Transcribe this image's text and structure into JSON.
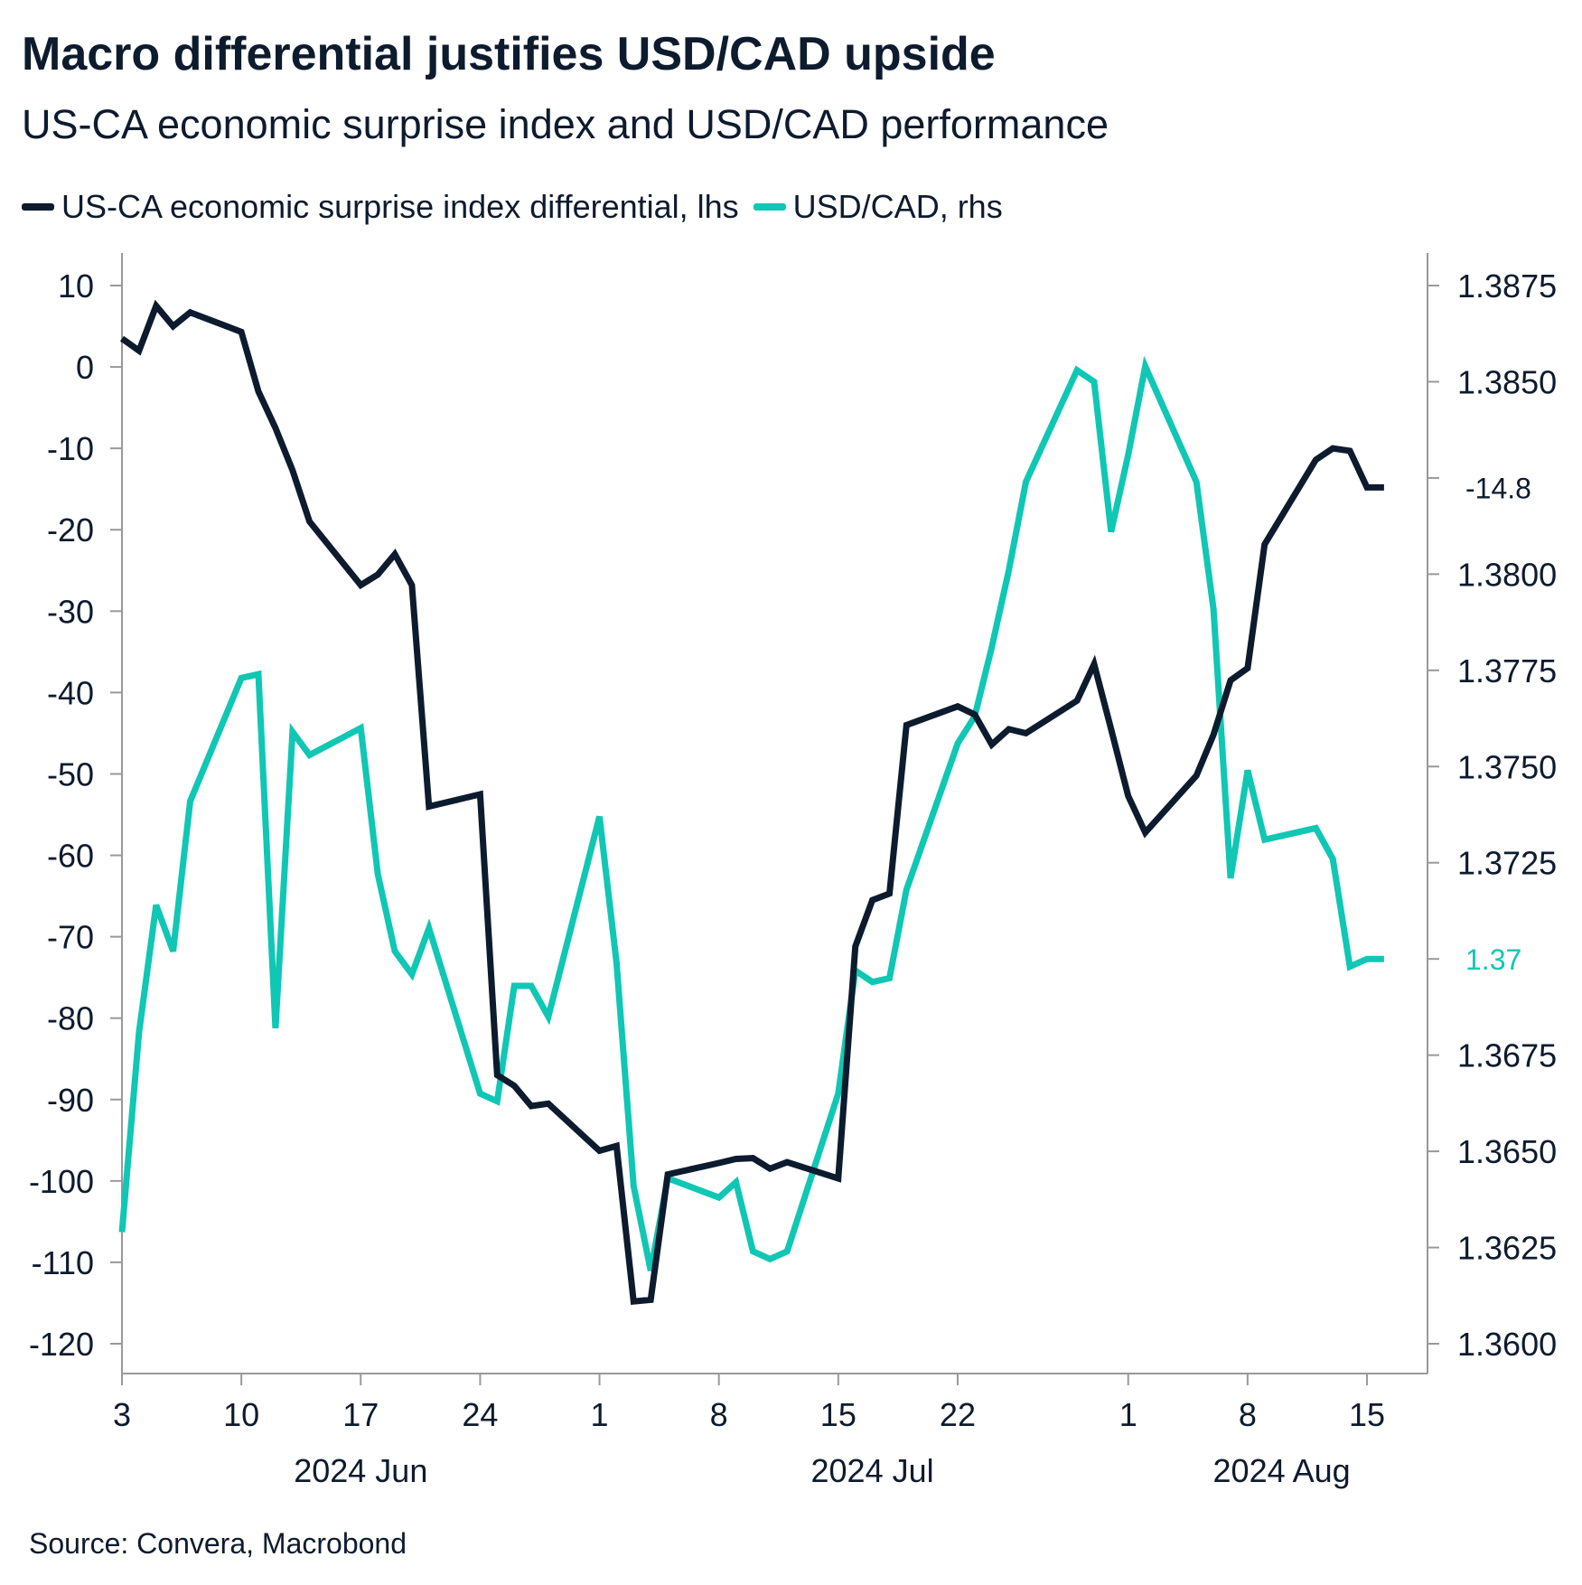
{
  "title": "Macro differential justifies USD/CAD upside",
  "subtitle": "US-CA economic surprise index and USD/CAD performance",
  "source": "Source: Convera, Macrobond",
  "colors": {
    "lhs": "#0d1b2e",
    "rhs": "#0fc7b4",
    "axis": "#999999"
  },
  "chart_data": {
    "type": "line",
    "x_axis": {
      "tick_labels": [
        "3",
        "10",
        "17",
        "24",
        "1",
        "8",
        "15",
        "22",
        "1",
        "8",
        "15"
      ],
      "tick_dates": [
        "2024-06-03",
        "2024-06-10",
        "2024-06-17",
        "2024-06-24",
        "2024-07-01",
        "2024-07-08",
        "2024-07-15",
        "2024-07-22",
        "2024-08-01",
        "2024-08-08",
        "2024-08-15"
      ],
      "month_labels": [
        {
          "label": "2024 Jun",
          "date": "2024-06-17"
        },
        {
          "label": "2024 Jul",
          "date": "2024-07-17"
        },
        {
          "label": "2024 Aug",
          "date": "2024-08-10"
        }
      ],
      "range": [
        "2024-06-03",
        "2024-08-19"
      ]
    },
    "y_left": {
      "range": [
        -120,
        10
      ],
      "ticks": [
        10,
        0,
        -10,
        -20,
        -30,
        -40,
        -50,
        -60,
        -70,
        -80,
        -90,
        -100,
        -110,
        -120
      ],
      "tick_labels": [
        "10",
        "0",
        "-10",
        "-20",
        "-30",
        "-40",
        "-50",
        "-60",
        "-70",
        "-80",
        "-90",
        "-100",
        "-110",
        "-120"
      ]
    },
    "y_right": {
      "range": [
        1.36,
        1.3875
      ],
      "ticks": [
        1.3875,
        1.385,
        1.3825,
        1.38,
        1.3775,
        1.375,
        1.3725,
        1.37,
        1.3675,
        1.365,
        1.3625,
        1.36
      ],
      "tick_labels": [
        "1.3875",
        "1.3850",
        "",
        "1.3800",
        "1.3775",
        "1.3750",
        "1.3725",
        "",
        "1.3675",
        "1.3650",
        "1.3625",
        "1.3600"
      ]
    },
    "end_labels": [
      {
        "text": "-14.8",
        "series": 0,
        "value": -14.8
      },
      {
        "text": "1.37",
        "series": 1,
        "value": 1.37
      }
    ],
    "series": [
      {
        "name": "US-CA economic surprise index differential, lhs",
        "axis": "left",
        "x": [
          "2024-06-03",
          "2024-06-04",
          "2024-06-05",
          "2024-06-06",
          "2024-06-07",
          "2024-06-10",
          "2024-06-11",
          "2024-06-12",
          "2024-06-13",
          "2024-06-14",
          "2024-06-17",
          "2024-06-18",
          "2024-06-19",
          "2024-06-20",
          "2024-06-21",
          "2024-06-24",
          "2024-06-25",
          "2024-06-26",
          "2024-06-27",
          "2024-06-28",
          "2024-07-01",
          "2024-07-02",
          "2024-07-03",
          "2024-07-04",
          "2024-07-05",
          "2024-07-08",
          "2024-07-09",
          "2024-07-10",
          "2024-07-11",
          "2024-07-12",
          "2024-07-15",
          "2024-07-16",
          "2024-07-17",
          "2024-07-18",
          "2024-07-19",
          "2024-07-22",
          "2024-07-23",
          "2024-07-24",
          "2024-07-25",
          "2024-07-26",
          "2024-07-29",
          "2024-07-30",
          "2024-07-31",
          "2024-08-01",
          "2024-08-02",
          "2024-08-05",
          "2024-08-06",
          "2024-08-07",
          "2024-08-08",
          "2024-08-09",
          "2024-08-12",
          "2024-08-13",
          "2024-08-14",
          "2024-08-15",
          "2024-08-16"
        ],
        "values": [
          3.5,
          2,
          7.5,
          5,
          6.7,
          4.3,
          -3,
          -7.5,
          -12.7,
          -19,
          -26.8,
          -25.5,
          -23,
          -26.8,
          -54,
          -52.5,
          -87,
          -88.3,
          -90.8,
          -90.5,
          -96.3,
          -95.7,
          -114.8,
          -114.6,
          -99.2,
          -97.8,
          -97.3,
          -97.2,
          -98.5,
          -97.7,
          -99.7,
          -71.2,
          -65.5,
          -64.7,
          -44,
          -41.7,
          -42.7,
          -46.4,
          -44.5,
          -45,
          -41,
          -36.5,
          -44.5,
          -52.7,
          -57.2,
          -50.2,
          -45.2,
          -38.5,
          -37,
          -21.8,
          -11.4,
          -10,
          -10.3,
          -14.8,
          -14.8
        ]
      },
      {
        "name": "USD/CAD, rhs",
        "axis": "right",
        "x": [
          "2024-06-03",
          "2024-06-04",
          "2024-06-05",
          "2024-06-06",
          "2024-06-07",
          "2024-06-10",
          "2024-06-11",
          "2024-06-12",
          "2024-06-13",
          "2024-06-14",
          "2024-06-17",
          "2024-06-18",
          "2024-06-19",
          "2024-06-20",
          "2024-06-21",
          "2024-06-24",
          "2024-06-25",
          "2024-06-26",
          "2024-06-27",
          "2024-06-28",
          "2024-07-01",
          "2024-07-02",
          "2024-07-03",
          "2024-07-04",
          "2024-07-05",
          "2024-07-08",
          "2024-07-09",
          "2024-07-10",
          "2024-07-11",
          "2024-07-12",
          "2024-07-15",
          "2024-07-16",
          "2024-07-17",
          "2024-07-18",
          "2024-07-19",
          "2024-07-22",
          "2024-07-23",
          "2024-07-24",
          "2024-07-25",
          "2024-07-26",
          "2024-07-29",
          "2024-07-30",
          "2024-07-31",
          "2024-08-01",
          "2024-08-02",
          "2024-08-05",
          "2024-08-06",
          "2024-08-07",
          "2024-08-08",
          "2024-08-09",
          "2024-08-12",
          "2024-08-13",
          "2024-08-14",
          "2024-08-15",
          "2024-08-16"
        ],
        "values": [
          1.3629,
          1.3681,
          1.3714,
          1.3702,
          1.3741,
          1.3773,
          1.3774,
          1.3682,
          1.3759,
          1.3753,
          1.376,
          1.3722,
          1.3702,
          1.3696,
          1.3708,
          1.3665,
          1.3663,
          1.3693,
          1.3693,
          1.3685,
          1.3737,
          1.3699,
          1.3641,
          1.3619,
          1.3643,
          1.3638,
          1.3642,
          1.3624,
          1.3622,
          1.3624,
          1.3665,
          1.3697,
          1.3694,
          1.3695,
          1.3718,
          1.3756,
          1.3763,
          1.3781,
          1.3801,
          1.3824,
          1.3853,
          1.385,
          1.3811,
          1.3831,
          1.3854,
          1.3824,
          1.3791,
          1.3721,
          1.3749,
          1.3731,
          1.3734,
          1.3726,
          1.3698,
          1.37,
          1.37
        ]
      }
    ]
  }
}
